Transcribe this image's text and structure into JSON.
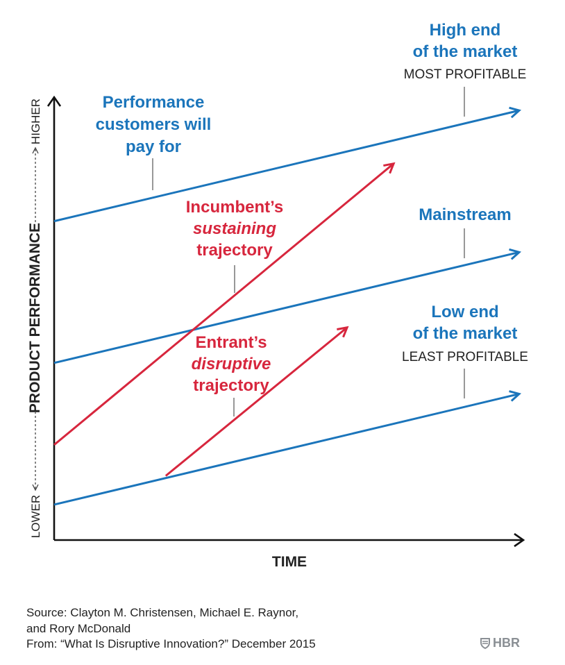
{
  "chart_data": {
    "type": "line",
    "x_axis": {
      "label": "TIME"
    },
    "y_axis": {
      "label": "PRODUCT PERFORMANCE",
      "low_label": "LOWER",
      "high_label": "HIGHER"
    },
    "xlim": [
      0,
      10
    ],
    "ylim": [
      0,
      10
    ],
    "grid": false,
    "colors": {
      "blue": "#1b75bb",
      "red": "#d7263d",
      "axis": "#111111"
    },
    "series": [
      {
        "kind": "market",
        "color": "#1b75bb",
        "x": [
          0,
          10
        ],
        "y": [
          7.2,
          9.7
        ],
        "label_lines": [
          "High end",
          "of the market"
        ],
        "sub_label": "MOST PROFITABLE"
      },
      {
        "kind": "market",
        "color": "#1b75bb",
        "x": [
          0,
          10
        ],
        "y": [
          4.0,
          6.5
        ],
        "label_lines": [
          "Mainstream"
        ],
        "sub_label": ""
      },
      {
        "kind": "market",
        "color": "#1b75bb",
        "x": [
          0,
          10
        ],
        "y": [
          0.8,
          3.3
        ],
        "label_lines": [
          "Low end",
          "of the market"
        ],
        "sub_label": "LEAST PROFITABLE"
      },
      {
        "kind": "trajectory",
        "color": "#d7263d",
        "x": [
          0,
          7.3
        ],
        "y": [
          2.15,
          8.5
        ],
        "label_lines": [
          "Incumbent’s",
          "sustaining",
          "trajectory"
        ],
        "italic_line": 1
      },
      {
        "kind": "trajectory",
        "color": "#d7263d",
        "x": [
          2.4,
          6.3
        ],
        "y": [
          1.45,
          4.8
        ],
        "label_lines": [
          "Entrant’s",
          "disruptive",
          "trajectory"
        ],
        "italic_line": 1
      }
    ],
    "annotations": [
      {
        "lines": [
          "Performance",
          "customers will",
          "pay for"
        ],
        "color": "#1b75bb"
      }
    ]
  },
  "source": {
    "lines": [
      "Source: Clayton M. Christensen, Michael E. Raynor,",
      "and Rory McDonald",
      "From: “What Is Disruptive Innovation?” December 2015"
    ]
  },
  "brand": {
    "name": "HBR"
  }
}
